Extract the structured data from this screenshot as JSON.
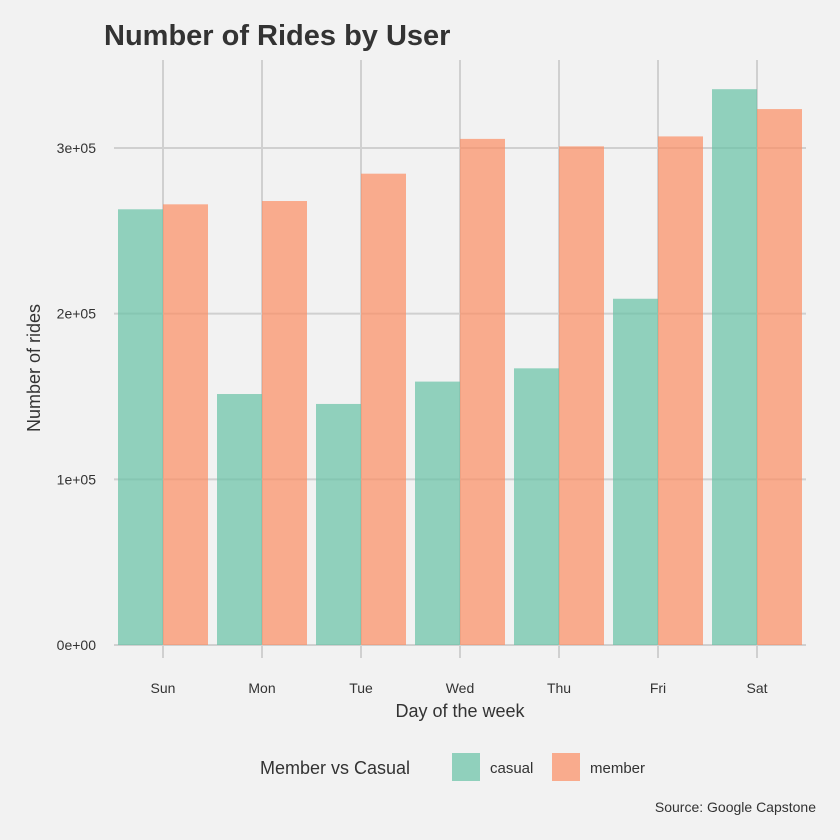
{
  "chart_data": {
    "type": "bar",
    "title": "Number of Rides by User",
    "xlabel": "Day of the week",
    "ylabel": "Number of rides",
    "categories": [
      "Sun",
      "Mon",
      "Tue",
      "Wed",
      "Thu",
      "Fri",
      "Sat"
    ],
    "series": [
      {
        "name": "casual",
        "color": "#66c2a5",
        "values": [
          263000,
          151500,
          145500,
          159000,
          167000,
          209000,
          335500
        ]
      },
      {
        "name": "member",
        "color": "#fc8d62",
        "values": [
          266000,
          268000,
          284500,
          305500,
          301000,
          307000,
          323500
        ]
      }
    ],
    "ylim": [
      0,
      350000
    ],
    "yticks": [
      0,
      100000,
      200000,
      300000
    ],
    "ytick_labels": [
      "0e+00",
      "1e+05",
      "2e+05",
      "3e+05"
    ],
    "legend_title": "Member vs Casual",
    "legend_position": "bottom",
    "caption": "Source: Google Capstone",
    "grid": true
  }
}
